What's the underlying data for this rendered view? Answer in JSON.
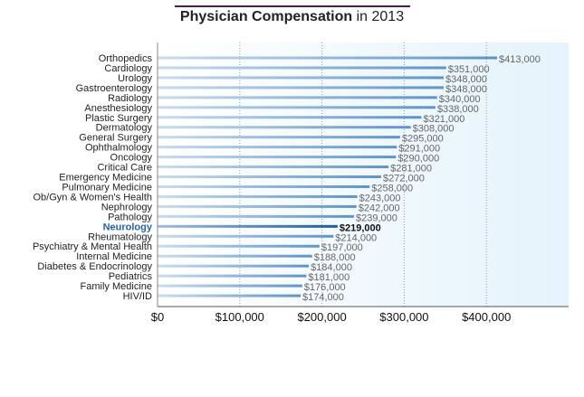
{
  "chart_data": {
    "type": "bar",
    "orientation": "horizontal",
    "title_bold": "Physician Compensation",
    "title_rest": " in 2013",
    "categories": [
      "Orthopedics",
      "Cardiology",
      "Urology",
      "Gastroenterology",
      "Radiology",
      "Anesthesiology",
      "Plastic Surgery",
      "Dermatology",
      "General Surgery",
      "Ophthalmology",
      "Oncology",
      "Critical Care",
      "Emergency Medicine",
      "Pulmonary Medicine",
      "Ob/Gyn & Women's Health",
      "Nephrology",
      "Pathology",
      "Neurology",
      "Rheumatology",
      "Psychiatry & Mental Health",
      "Internal Medicine",
      "Diabetes & Endocrinology",
      "Pediatrics",
      "Family Medicine",
      "HIV/ID"
    ],
    "values": [
      413000,
      351000,
      348000,
      348000,
      340000,
      338000,
      321000,
      308000,
      295000,
      291000,
      290000,
      281000,
      272000,
      258000,
      243000,
      242000,
      239000,
      219000,
      214000,
      197000,
      188000,
      184000,
      181000,
      176000,
      174000
    ],
    "value_labels": [
      "$413,000",
      "$351,000",
      "$348,000",
      "$348,000",
      "$340,000",
      "$338,000",
      "$321,000",
      "$308,000",
      "$295,000",
      "$291,000",
      "$290,000",
      "$281,000",
      "$272,000",
      "$258,000",
      "$243,000",
      "$242,000",
      "$239,000",
      "$219,000",
      "$214,000",
      "$197,000",
      "$188,000",
      "$184,000",
      "$181,000",
      "$176,000",
      "$174,000"
    ],
    "highlight": "Neurology",
    "xticks": [
      0,
      100000,
      200000,
      300000,
      400000
    ],
    "xtick_labels": [
      "$0",
      "$100,000",
      "$200,000",
      "$300,000",
      "$400,000"
    ],
    "xlim": [
      0,
      500000
    ],
    "grid": "vertical-dotted",
    "colors": {
      "bar": "#6a9fd0",
      "highlight": "#1f5a9a",
      "label": "#666666",
      "highlight_label": "#111111",
      "category": "#222222",
      "highlight_category": "#2563a8"
    }
  }
}
